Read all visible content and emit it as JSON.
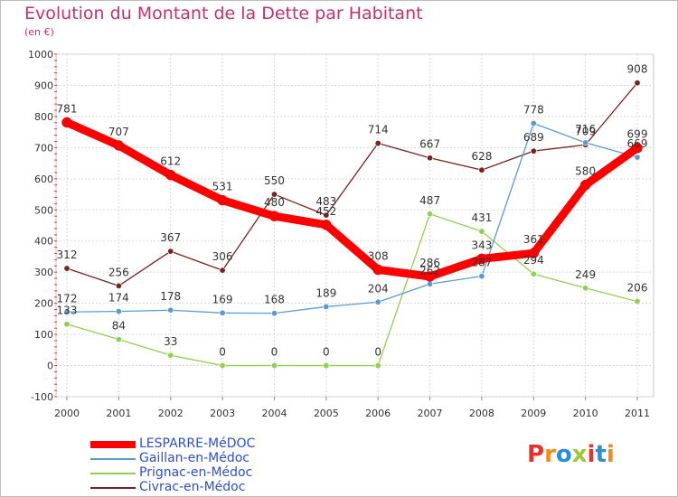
{
  "title": "Evolution du Montant de la Dette par Habitant",
  "unit": "(en €)",
  "logo": {
    "letters": [
      "P",
      "r",
      "o",
      "x",
      "i",
      "t",
      "i"
    ],
    "colors": [
      "#e8312a",
      "#f28c1b",
      "#2b8fd8",
      "#a4c639",
      "#e8312a",
      "#2b8fd8",
      "#f28c1b"
    ]
  },
  "chart_data": {
    "type": "line",
    "title": "Evolution du Montant de la Dette par Habitant",
    "ylabel": "(en €)",
    "xlabel": "",
    "x": [
      "2000",
      "2001",
      "2002",
      "2003",
      "2004",
      "2005",
      "2006",
      "2007",
      "2008",
      "2009",
      "2010",
      "2011"
    ],
    "ylim": [
      -100,
      1000
    ],
    "yticks": [
      -100,
      0,
      100,
      200,
      300,
      400,
      500,
      600,
      700,
      800,
      900,
      1000
    ],
    "ytick_labels": [
      "-100",
      "0",
      "100",
      "200",
      "300",
      "400",
      "500",
      "600",
      "700",
      "800",
      "900",
      "1000"
    ],
    "grid": true,
    "legend_position": "bottom",
    "series": [
      {
        "name": "LESPARRE-MéDOC",
        "color": "#ff0000",
        "values": [
          781,
          707,
          612,
          531,
          480,
          452,
          308,
          286,
          343,
          361,
          580,
          699
        ],
        "labels": [
          "781",
          "707",
          "612",
          "531",
          "480",
          "452",
          "308",
          "286",
          "343",
          "361",
          "580",
          "699"
        ]
      },
      {
        "name": "Gaillan-en-Médoc",
        "color": "#5b9bd5",
        "values": [
          172,
          174,
          178,
          169,
          168,
          189,
          204,
          262,
          287,
          778,
          716,
          669
        ],
        "labels": [
          "172",
          "174",
          "178",
          "169",
          "168",
          "189",
          "204",
          "262",
          "287",
          "778",
          "716",
          "669"
        ]
      },
      {
        "name": "Prignac-en-Médoc",
        "color": "#8fd14f",
        "values": [
          133,
          84,
          33,
          0,
          0,
          0,
          0,
          487,
          431,
          294,
          249,
          206
        ],
        "labels": [
          "133",
          "84",
          "33",
          "0",
          "0",
          "0",
          "0",
          "487",
          "431",
          "294",
          "249",
          "206"
        ]
      },
      {
        "name": "Civrac-en-Médoc",
        "color": "#7b2323",
        "values": [
          312,
          256,
          367,
          306,
          550,
          483,
          714,
          667,
          628,
          689,
          709,
          908
        ],
        "labels": [
          "312",
          "256",
          "367",
          "306",
          "550",
          "483",
          "714",
          "667",
          "628",
          "689",
          "709",
          "908"
        ]
      }
    ]
  }
}
